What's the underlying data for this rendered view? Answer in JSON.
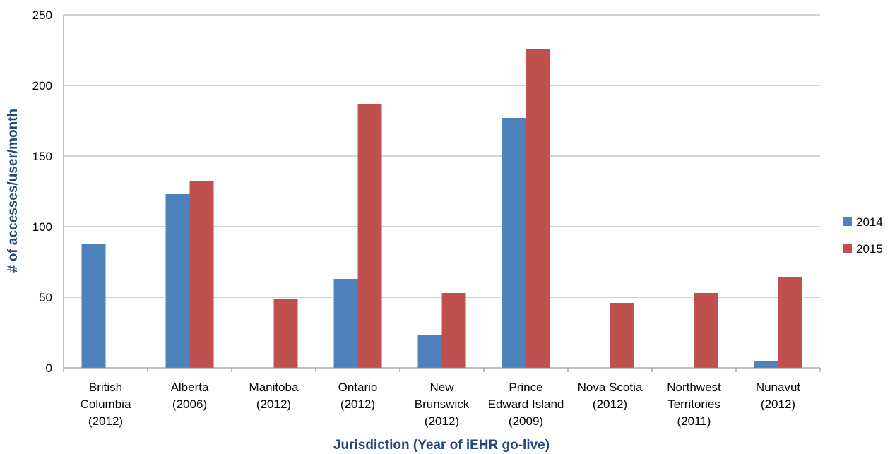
{
  "chart_data": {
    "type": "bar",
    "title": "",
    "xlabel": "Jurisdiction (Year of iEHR go-live)",
    "ylabel": "# of accesses/user/month",
    "ylim": [
      0,
      250
    ],
    "yticks": [
      0,
      50,
      100,
      150,
      200,
      250
    ],
    "grid": true,
    "legend": "right",
    "axis_title_color": "#1F497D",
    "categories": [
      [
        "British",
        "Columbia",
        "(2012)"
      ],
      [
        "Alberta",
        "(2006)"
      ],
      [
        "Manitoba",
        "(2012)"
      ],
      [
        "Ontario",
        "(2012)"
      ],
      [
        "New",
        "Brunswick",
        "(2012)"
      ],
      [
        "Prince",
        "Edward Island",
        "(2009)"
      ],
      [
        "Nova Scotia",
        "(2012)"
      ],
      [
        "Northwest",
        "Territories",
        "(2011)"
      ],
      [
        "Nunavut",
        "(2012)"
      ]
    ],
    "series": [
      {
        "name": "2014",
        "color": "#4F81BD",
        "values": [
          88,
          123,
          0,
          63,
          23,
          177,
          0,
          0,
          5
        ]
      },
      {
        "name": "2015",
        "color": "#C0504D",
        "values": [
          0,
          132,
          49,
          187,
          53,
          226,
          46,
          53,
          64
        ]
      }
    ]
  }
}
